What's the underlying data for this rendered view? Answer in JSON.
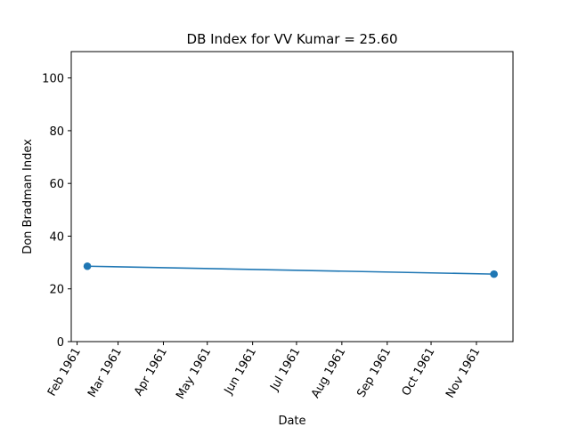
{
  "chart_data": {
    "type": "line",
    "title": "DB Index for VV Kumar = 25.60",
    "xlabel": "Date",
    "ylabel": "Don Bradman Index",
    "ylim": [
      0,
      110
    ],
    "yticks": [
      0,
      20,
      40,
      60,
      80,
      100
    ],
    "xlim": [
      "1961-01-28",
      "1961-11-26"
    ],
    "xticks": [
      {
        "date": "1961-02-01",
        "label": "Feb 1961"
      },
      {
        "date": "1961-03-01",
        "label": "Mar 1961"
      },
      {
        "date": "1961-04-01",
        "label": "Apr 1961"
      },
      {
        "date": "1961-05-01",
        "label": "May 1961"
      },
      {
        "date": "1961-06-01",
        "label": "Jun 1961"
      },
      {
        "date": "1961-07-01",
        "label": "Jul 1961"
      },
      {
        "date": "1961-08-01",
        "label": "Aug 1961"
      },
      {
        "date": "1961-09-01",
        "label": "Sep 1961"
      },
      {
        "date": "1961-10-01",
        "label": "Oct 1961"
      },
      {
        "date": "1961-11-01",
        "label": "Nov 1961"
      }
    ],
    "series": [
      {
        "x": [
          "1961-02-08",
          "1961-11-13"
        ],
        "y": [
          28.6,
          25.6
        ],
        "color": "#1f77b4",
        "marker": "circle"
      }
    ],
    "grid": false,
    "legend": "none"
  }
}
